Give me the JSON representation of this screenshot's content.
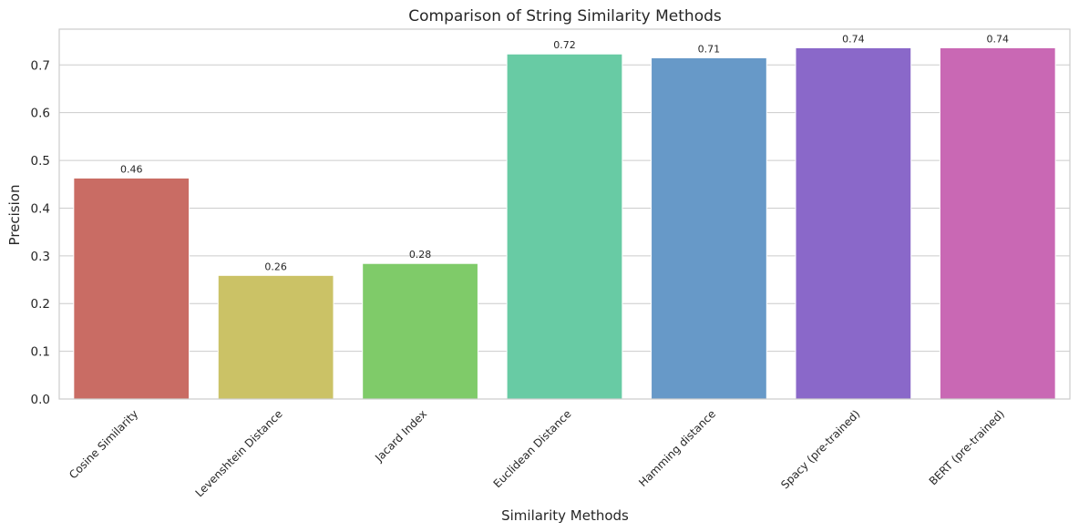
{
  "chart_data": {
    "type": "bar",
    "title": "Comparison of String Similarity Methods",
    "xlabel": "Similarity Methods",
    "ylabel": "Precision",
    "ylim": [
      0,
      0.775
    ],
    "yticks": [
      "0.0",
      "0.1",
      "0.2",
      "0.3",
      "0.4",
      "0.5",
      "0.6",
      "0.7"
    ],
    "grid": "horizontal",
    "categories": [
      "Cosine Similarity",
      "Levenshtein Distance",
      "Jacard Index",
      "Euclidean Distance",
      "Hamming distance",
      "Spacy (pre-trained)",
      "BERT (pre-trained)"
    ],
    "values": [
      0.463,
      0.259,
      0.284,
      0.723,
      0.715,
      0.736,
      0.736
    ],
    "value_labels": [
      "0.46",
      "0.26",
      "0.28",
      "0.72",
      "0.71",
      "0.74",
      "0.74"
    ],
    "colors": [
      "#c96c64",
      "#cbc266",
      "#7fcb69",
      "#68cba4",
      "#6799c8",
      "#8a68c9",
      "#c968b4"
    ]
  }
}
